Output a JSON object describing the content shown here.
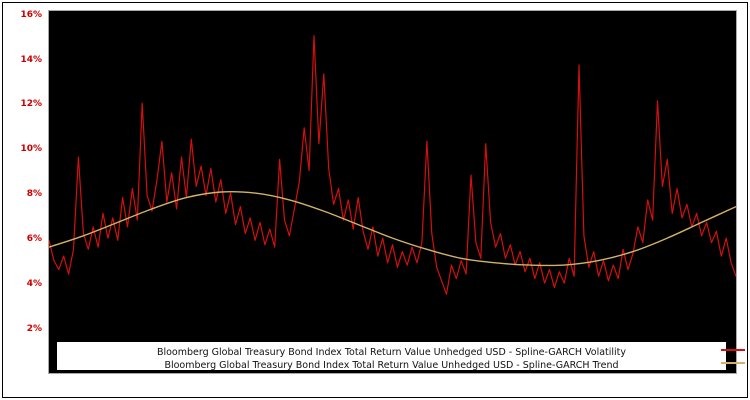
{
  "chart_data": {
    "type": "line",
    "title": "",
    "background": "#ffffff",
    "plot_background": "#000000",
    "axis_tick_color": "#cc0000",
    "grid": false,
    "legend_position": "bottom",
    "ylim": [
      0.1,
      16.2
    ],
    "y_ticks": [
      {
        "label": "2%",
        "value": 2
      },
      {
        "label": "4%",
        "value": 4
      },
      {
        "label": "6%",
        "value": 6
      },
      {
        "label": "8%",
        "value": 8
      },
      {
        "label": "10%",
        "value": 10
      },
      {
        "label": "12%",
        "value": 12
      },
      {
        "label": "14%",
        "value": 14
      },
      {
        "label": "16%",
        "value": 16
      }
    ],
    "series": [
      {
        "name": "Bloomberg Global Treasury Bond Index Total Return Value Unhedged USD - Spline-GARCH Volatility",
        "color": "#d40f0f",
        "stroke_width": 1.2,
        "smooth": false,
        "values": [
          6.0,
          5.1,
          4.7,
          5.3,
          4.5,
          5.6,
          9.7,
          6.3,
          5.6,
          6.6,
          5.7,
          7.2,
          6.1,
          7.0,
          6.0,
          7.9,
          6.6,
          8.3,
          6.9,
          12.1,
          8.0,
          7.3,
          8.7,
          10.4,
          7.7,
          9.0,
          7.4,
          9.7,
          7.9,
          10.5,
          8.4,
          9.3,
          8.0,
          9.2,
          7.7,
          8.7,
          7.2,
          8.1,
          6.7,
          7.5,
          6.3,
          7.0,
          6.0,
          6.8,
          5.8,
          6.5,
          5.7,
          9.6,
          6.9,
          6.2,
          7.4,
          8.6,
          11.0,
          9.1,
          15.1,
          10.3,
          13.4,
          9.2,
          7.6,
          8.3,
          6.9,
          7.8,
          6.5,
          7.9,
          6.4,
          5.6,
          6.6,
          5.3,
          6.1,
          5.0,
          5.8,
          4.8,
          5.5,
          4.9,
          5.7,
          5.0,
          5.9,
          10.4,
          6.3,
          4.8,
          4.2,
          3.6,
          4.9,
          4.3,
          5.1,
          4.5,
          8.9,
          5.9,
          5.2,
          10.3,
          6.8,
          5.7,
          6.3,
          5.2,
          5.8,
          4.9,
          5.5,
          4.6,
          5.2,
          4.3,
          5.0,
          4.1,
          4.7,
          3.9,
          4.6,
          4.1,
          5.2,
          4.4,
          13.8,
          6.2,
          4.8,
          5.5,
          4.4,
          5.1,
          4.2,
          4.9,
          4.3,
          5.6,
          4.7,
          5.4,
          6.6,
          5.9,
          7.8,
          6.9,
          12.2,
          8.4,
          9.6,
          7.2,
          8.3,
          7.0,
          7.6,
          6.6,
          7.2,
          6.2,
          6.8,
          5.9,
          6.4,
          5.3,
          6.1,
          5.0,
          4.4
        ]
      },
      {
        "name": "Bloomberg Global Treasury Bond Index Total Return Value Unhedged USD - Spline-GARCH Trend",
        "color": "#d2b268",
        "stroke_width": 1.4,
        "smooth": true,
        "values": [
          5.7,
          6.2,
          6.8,
          7.4,
          7.9,
          8.15,
          8.1,
          7.8,
          7.3,
          6.7,
          6.1,
          5.6,
          5.2,
          5.0,
          4.9,
          4.9,
          5.1,
          5.5,
          6.1,
          6.8,
          7.5
        ]
      }
    ],
    "legend": {
      "entries": [
        {
          "label": "Bloomberg Global Treasury Bond Index Total Return Value Unhedged USD - Spline-GARCH Volatility",
          "color": "#d40f0f"
        },
        {
          "label": "Bloomberg Global Treasury Bond Index Total Return Value Unhedged USD - Spline-GARCH Trend",
          "color": "#d2b268"
        }
      ]
    }
  }
}
